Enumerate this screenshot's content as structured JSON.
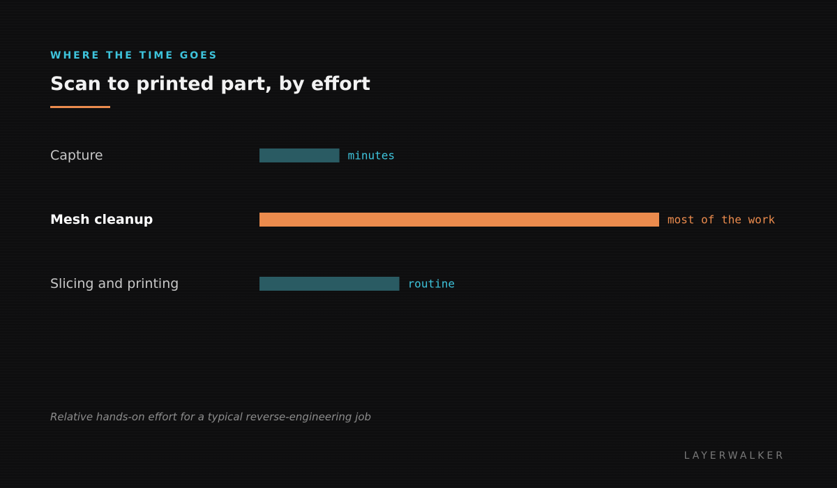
{
  "header": {
    "kicker": "WHERE THE TIME GOES",
    "title": "Scan to printed part, by effort"
  },
  "chart_data": {
    "type": "bar",
    "orientation": "horizontal",
    "categories": [
      "Capture",
      "Mesh cleanup",
      "Slicing and printing"
    ],
    "values": [
      20,
      100,
      35
    ],
    "value_labels": [
      "minutes",
      "most of the work",
      "routine"
    ],
    "highlight": [
      false,
      true,
      false
    ],
    "title": "Scan to printed part, by effort",
    "xlabel": "",
    "ylabel": "",
    "xlim": [
      0,
      100
    ],
    "grid": false,
    "legend": "none"
  },
  "footer": {
    "caption": "Relative hands-on effort for a typical reverse-engineering job",
    "brand": "LAYERWALKER"
  },
  "colors": {
    "accent_cyan": "#3ec4dc",
    "accent_orange": "#eb8b4d",
    "bar_muted": "#2a5b63",
    "label_text": "#c8c8c8",
    "highlight_text": "#ffffff"
  }
}
